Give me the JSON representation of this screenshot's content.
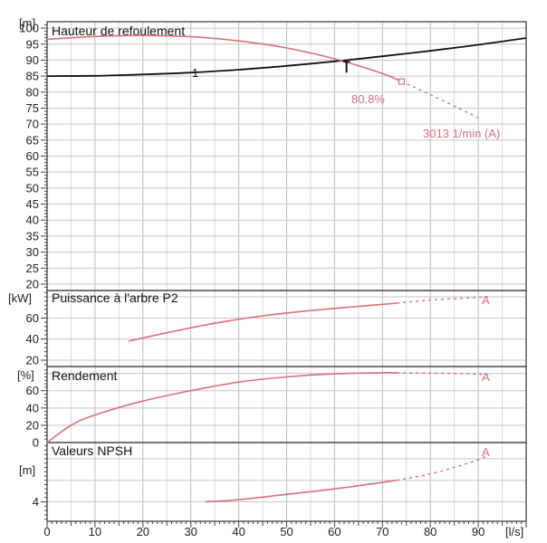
{
  "chart_data": [
    {
      "type": "line",
      "panel": "head",
      "title": "Hauteur de refoulement",
      "ylabel": "[m]",
      "xlabel": "[l/s]",
      "ylim": [
        18,
        102
      ],
      "yticks": [
        "20",
        "25",
        "30",
        "35",
        "40",
        "45",
        "50",
        "55",
        "60",
        "65",
        "70",
        "75",
        "80",
        "85",
        "90",
        "95",
        "100"
      ],
      "xlim": [
        0,
        100
      ],
      "xticks": [
        "0",
        "10",
        "20",
        "30",
        "40",
        "50",
        "60",
        "70",
        "80",
        "90"
      ],
      "system_curve": {
        "label": "1",
        "color": "#111111",
        "x": [
          0,
          10,
          20,
          30,
          40,
          50,
          60,
          70,
          80,
          90,
          100
        ],
        "y": [
          85.0,
          85.1,
          85.5,
          86.1,
          87.0,
          88.2,
          89.6,
          91.2,
          92.9,
          94.8,
          96.9
        ]
      },
      "pump_curve": {
        "color": "#d9707a",
        "x": [
          0,
          10,
          20,
          30,
          40,
          50,
          60,
          70,
          74
        ],
        "y": [
          96.5,
          97.4,
          97.7,
          97.3,
          96.0,
          93.8,
          90.4,
          85.8,
          83.3
        ]
      },
      "pump_curve_dashed": {
        "x": [
          74,
          80,
          90
        ],
        "y": [
          83.3,
          79.2,
          72.0
        ]
      },
      "operating_point": {
        "x": 62.5,
        "y": 89.2
      },
      "efficiency_label": "80.8%",
      "speed_label": "3013 1/min (A)"
    },
    {
      "type": "line",
      "panel": "power",
      "title": "Puissance à l'arbre P2",
      "ylabel": "[kW]",
      "ylim": [
        14,
        86
      ],
      "yticks": [
        "20",
        "40",
        "60"
      ],
      "series_color": "#d9707a",
      "x": [
        17,
        25,
        35,
        45,
        55,
        65,
        73
      ],
      "y": [
        38,
        46,
        55,
        62,
        67,
        71,
        74
      ],
      "dashed": {
        "x": [
          73,
          80,
          88,
          92
        ],
        "y": [
          74,
          77,
          79,
          80
        ]
      },
      "end_label": "A"
    },
    {
      "type": "line",
      "panel": "efficiency",
      "title": "Rendement",
      "ylabel": "[%]",
      "ylim": [
        0,
        88
      ],
      "yticks": [
        "0",
        "20",
        "40",
        "60"
      ],
      "series_color": "#d9707a",
      "x": [
        0,
        5,
        10,
        20,
        30,
        40,
        50,
        60,
        70,
        73
      ],
      "y": [
        0,
        20,
        32,
        48,
        60,
        70,
        76,
        79.5,
        80.8,
        80.8
      ],
      "dashed": {
        "x": [
          73,
          80,
          88,
          92
        ],
        "y": [
          80.8,
          80.5,
          79.5,
          78.5
        ]
      },
      "end_label": "A"
    },
    {
      "type": "line",
      "panel": "npsh",
      "title": "Valeurs NPSH",
      "ylabel": "[m]",
      "ylim": [
        2.2,
        9.5
      ],
      "yticks": [
        "4"
      ],
      "series_color": "#d9707a",
      "x": [
        33,
        40,
        50,
        60,
        73
      ],
      "y": [
        4.0,
        4.2,
        4.7,
        5.2,
        6.0
      ],
      "dashed": {
        "x": [
          73,
          80,
          88,
          92
        ],
        "y": [
          6.0,
          6.6,
          7.6,
          8.3
        ]
      },
      "end_label": "A"
    }
  ]
}
